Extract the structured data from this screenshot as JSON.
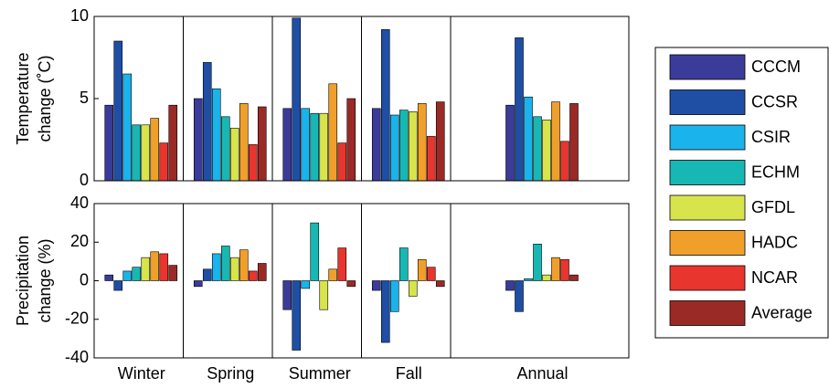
{
  "chart_data": [
    {
      "type": "bar",
      "ylabel": [
        "Temperature",
        "change (˚C)"
      ],
      "ylim": [
        0,
        10
      ],
      "yticks": [
        0,
        5,
        10
      ],
      "series": [
        {
          "name": "CCCM",
          "color": "#3b3b9a",
          "values": [
            4.6,
            5.0,
            4.4,
            4.4,
            4.6
          ]
        },
        {
          "name": "CCSR",
          "color": "#1f4ea5",
          "values": [
            8.5,
            7.2,
            9.9,
            9.2,
            8.7
          ]
        },
        {
          "name": "CSIR",
          "color": "#1ab3ec",
          "values": [
            6.5,
            5.6,
            4.4,
            4.0,
            5.1
          ]
        },
        {
          "name": "ECHM",
          "color": "#17b8b4",
          "values": [
            3.4,
            3.9,
            4.1,
            4.3,
            3.9
          ]
        },
        {
          "name": "GFDL",
          "color": "#d8e44c",
          "values": [
            3.4,
            3.2,
            4.1,
            4.2,
            3.7
          ]
        },
        {
          "name": "HADC",
          "color": "#f0a02a",
          "values": [
            3.8,
            4.7,
            5.9,
            4.7,
            4.8
          ]
        },
        {
          "name": "NCAR",
          "color": "#e8352e",
          "values": [
            2.3,
            2.2,
            2.3,
            2.7,
            2.4
          ]
        },
        {
          "name": "Average",
          "color": "#9a2a26",
          "values": [
            4.6,
            4.5,
            5.0,
            4.8,
            4.7
          ]
        }
      ]
    },
    {
      "type": "bar",
      "ylabel": [
        "Precipitation",
        "change (%)"
      ],
      "ylim": [
        -40,
        40
      ],
      "yticks": [
        -40,
        -20,
        0,
        20,
        40
      ],
      "categories": [
        "Winter",
        "Spring",
        "Summer",
        "Fall",
        "Annual"
      ],
      "series": [
        {
          "values": [
            3,
            -3,
            -15,
            -5,
            -5
          ]
        },
        {
          "values": [
            -5,
            6,
            -36,
            -32,
            -16
          ]
        },
        {
          "values": [
            5,
            14,
            -4,
            -16,
            1
          ]
        },
        {
          "values": [
            7,
            18,
            30,
            17,
            19
          ]
        },
        {
          "values": [
            12,
            12,
            -15,
            -8,
            3
          ]
        },
        {
          "values": [
            15,
            16,
            6,
            11,
            12
          ]
        },
        {
          "values": [
            14,
            5,
            17,
            7,
            11
          ]
        },
        {
          "values": [
            8,
            9,
            -3,
            -3,
            3
          ]
        }
      ]
    }
  ]
}
